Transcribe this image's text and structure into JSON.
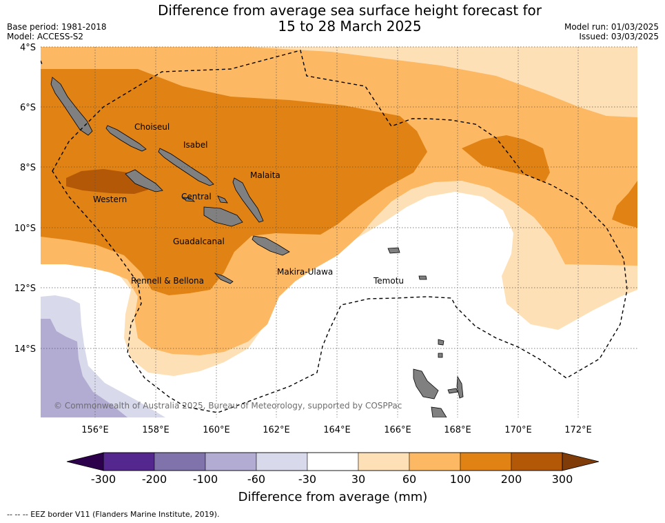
{
  "title_line1": "Difference from average sea surface height forecast for",
  "title_line2": "15 to 28 March 2025",
  "base_period": "Base period: 1981-2018",
  "model": "Model: ACCESS-S2",
  "model_run": "Model run: 01/03/2025",
  "issued": "Issued: 03/03/2025",
  "lat_labels": [
    "4°S",
    "6°S",
    "8°S",
    "10°S",
    "12°S",
    "14°S"
  ],
  "lon_labels": [
    "156°E",
    "158°E",
    "160°E",
    "162°E",
    "164°E",
    "166°E",
    "168°E",
    "170°E",
    "172°E"
  ],
  "provinces": [
    "Choiseul",
    "Isabel",
    "Malaita",
    "Western",
    "Central",
    "Guadalcanal",
    "Rennell & Bellona",
    "Makira-Ulawa",
    "Temotu"
  ],
  "copyright": "© Commonwealth of Australia 2025, Bureau of Meteorology, supported by COSPPac",
  "colorbar": {
    "label": "Difference from average (mm)",
    "ticks": [
      "-300",
      "-200",
      "-100",
      "-60",
      "-30",
      "30",
      "60",
      "100",
      "200",
      "300"
    ],
    "colors": [
      "#54278f",
      "#8073ac",
      "#b2abd2",
      "#d8daeb",
      "#ffffff",
      "#fee0b6",
      "#fdb863",
      "#e08214",
      "#b35806"
    ],
    "under_color": "#2d004b",
    "over_color": "#7f3b08"
  },
  "eez_legend": "--  --  -- EEZ border V11 (Flanders Marine Institute, 2019)."
}
